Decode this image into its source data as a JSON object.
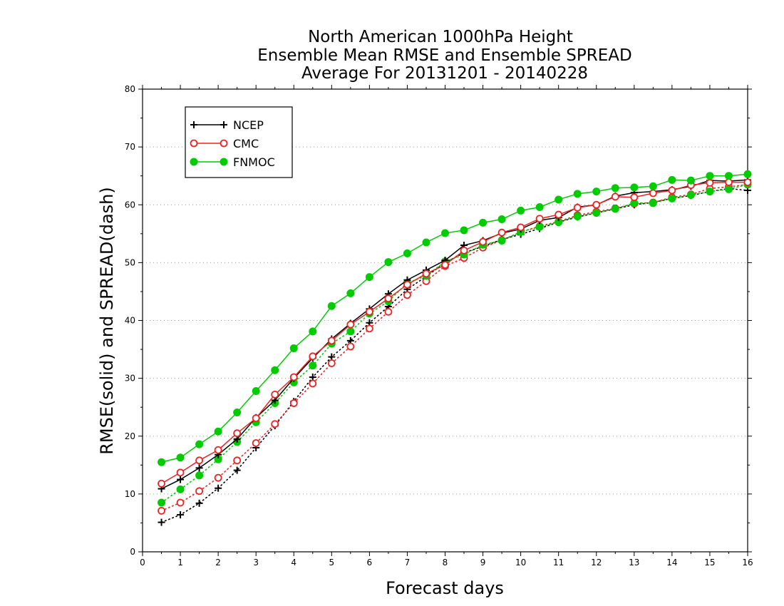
{
  "chart_data": {
    "type": "line",
    "title": [
      "North American 1000hPa Height",
      "Ensemble Mean RMSE and Ensemble SPREAD",
      "Average For 20131201 - 20140228"
    ],
    "xlabel": "Forecast days",
    "ylabel": "RMSE(solid) and SPREAD(dash)",
    "xlim": [
      0,
      16
    ],
    "ylim": [
      0,
      80
    ],
    "xticks": [
      "0",
      "1",
      "2",
      "3",
      "4",
      "5",
      "6",
      "7",
      "8",
      "9",
      "10",
      "11",
      "12",
      "13",
      "14",
      "15",
      "16"
    ],
    "yticks": [
      "0",
      "10",
      "20",
      "30",
      "40",
      "50",
      "60",
      "70",
      "80"
    ],
    "grid": true,
    "legend_position": "top-left",
    "x": [
      0.5,
      1,
      1.5,
      2,
      2.5,
      3,
      3.5,
      4,
      4.5,
      5,
      5.5,
      6,
      6.5,
      7,
      7.5,
      8,
      8.5,
      9,
      9.5,
      10,
      10.5,
      11,
      11.5,
      12,
      12.5,
      13,
      13.5,
      14,
      14.5,
      15,
      15.5,
      16
    ],
    "series": [
      {
        "name": "NCEP",
        "metric": "RMSE",
        "style": "solid",
        "color": "#000000",
        "marker": "plus",
        "values": [
          10.9,
          12.5,
          14.5,
          16.8,
          19.5,
          23.2,
          26.2,
          30.0,
          33.5,
          36.8,
          39.5,
          42.0,
          44.6,
          47.0,
          48.7,
          50.4,
          53.0,
          53.8,
          55.1,
          55.8,
          57.3,
          57.8,
          59.6,
          60.0,
          61.5,
          62.1,
          62.3,
          62.6,
          63.2,
          64.2,
          64.1,
          64.3
        ]
      },
      {
        "name": "CMC",
        "metric": "RMSE",
        "style": "solid",
        "color": "#ee2222",
        "marker": "open-circle",
        "values": [
          11.8,
          13.7,
          15.8,
          17.6,
          20.5,
          23.1,
          27.2,
          30.2,
          33.8,
          36.5,
          39.3,
          41.5,
          43.8,
          46.2,
          48.1,
          49.6,
          52.1,
          53.6,
          55.2,
          56.1,
          57.6,
          58.3,
          59.5,
          60.0,
          61.4,
          61.3,
          62.0,
          62.5,
          63.4,
          63.8,
          63.9,
          63.9
        ]
      },
      {
        "name": "FNMOC",
        "metric": "RMSE",
        "style": "solid",
        "color": "#00cc00",
        "marker": "filled-circle",
        "values": [
          15.5,
          16.3,
          18.6,
          20.8,
          24.1,
          27.8,
          31.4,
          35.2,
          38.1,
          42.5,
          44.7,
          47.5,
          50.1,
          51.6,
          53.5,
          55.1,
          55.6,
          56.9,
          57.5,
          59.0,
          59.6,
          60.9,
          61.9,
          62.3,
          62.9,
          63.0,
          63.2,
          64.3,
          64.2,
          65.0,
          65.0,
          65.3
        ]
      },
      {
        "name": "NCEP",
        "metric": "SPREAD",
        "style": "dash",
        "color": "#000000",
        "marker": "plus",
        "values": [
          5.1,
          6.4,
          8.4,
          11.0,
          14.1,
          18.0,
          21.8,
          26.0,
          30.2,
          33.7,
          36.5,
          39.6,
          42.4,
          45.4,
          47.6,
          50.0,
          51.7,
          52.8,
          54.0,
          54.9,
          55.9,
          57.0,
          57.9,
          58.6,
          59.3,
          60.0,
          60.4,
          61.1,
          61.6,
          62.3,
          62.8,
          62.5
        ]
      },
      {
        "name": "CMC",
        "metric": "SPREAD",
        "style": "dash",
        "color": "#ee2222",
        "marker": "open-circle",
        "values": [
          7.1,
          8.5,
          10.5,
          12.8,
          15.8,
          18.8,
          22.1,
          25.7,
          29.1,
          32.6,
          35.5,
          38.6,
          41.5,
          44.4,
          46.8,
          49.4,
          50.8,
          52.6,
          53.9,
          55.3,
          56.3,
          57.1,
          58.2,
          58.8,
          59.4,
          60.2,
          60.4,
          61.3,
          61.8,
          62.8,
          63.1,
          63.5
        ]
      },
      {
        "name": "FNMOC",
        "metric": "SPREAD",
        "style": "dash",
        "color": "#00cc00",
        "marker": "filled-circle",
        "values": [
          8.5,
          10.8,
          13.2,
          16.0,
          19.0,
          22.4,
          25.7,
          29.3,
          32.2,
          36.0,
          38.1,
          41.2,
          43.3,
          46.5,
          47.7,
          50.2,
          51.4,
          53.1,
          53.8,
          55.3,
          56.2,
          57.0,
          58.0,
          58.6,
          59.3,
          60.3,
          60.3,
          61.1,
          61.7,
          62.3,
          62.7,
          63.5
        ]
      }
    ]
  }
}
